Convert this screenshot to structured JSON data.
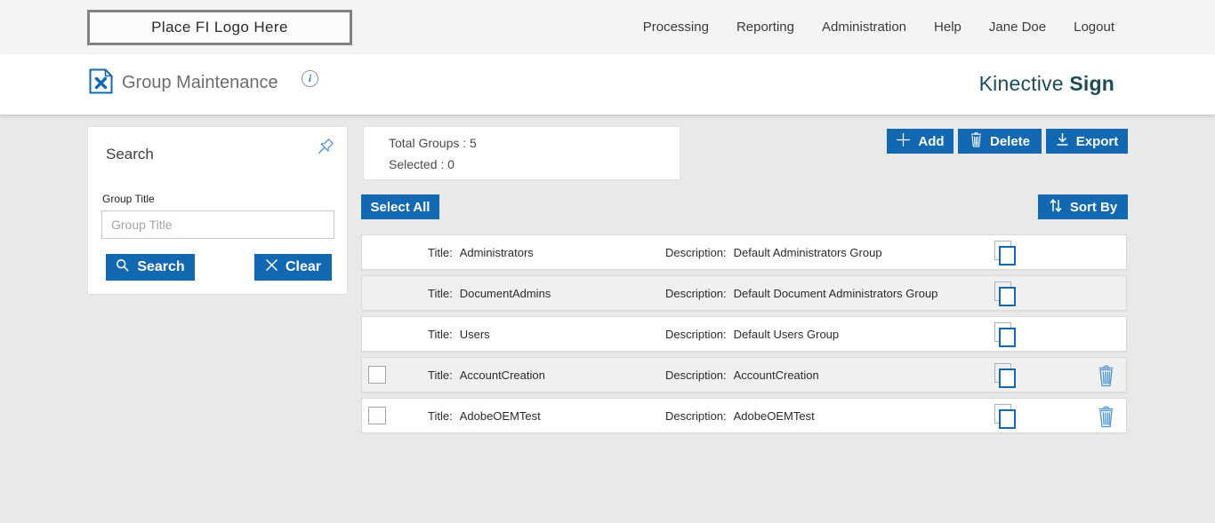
{
  "topbar": {
    "logo_text": "Place FI Logo Here",
    "nav": [
      "Processing",
      "Reporting",
      "Administration",
      "Help",
      "Jane Doe",
      "Logout"
    ]
  },
  "header": {
    "title": "Group Maintenance",
    "info_icon_glyph": "i",
    "brand_regular": "Kinective",
    "brand_bold": "Sign"
  },
  "search_panel": {
    "title": "Search",
    "field_label": "Group Title",
    "field_placeholder": "Group Title",
    "field_value": "",
    "search_button": "Search",
    "clear_button": "Clear"
  },
  "summary": {
    "total_label": "Total Groups :",
    "total_value": "5",
    "selected_label": "Selected :",
    "selected_value": "0"
  },
  "toolbar": {
    "add_label": "Add",
    "delete_label": "Delete",
    "export_label": "Export"
  },
  "list_controls": {
    "select_all_label": "Select All",
    "sort_by_label": "Sort By"
  },
  "groups": {
    "title_label": "Title:",
    "description_label": "Description:",
    "rows": [
      {
        "title": "Administrators",
        "description": "Default Administrators Group",
        "selectable": false,
        "deletable": false
      },
      {
        "title": "DocumentAdmins",
        "description": "Default Document Administrators Group",
        "selectable": false,
        "deletable": false
      },
      {
        "title": "Users",
        "description": "Default Users Group",
        "selectable": false,
        "deletable": false
      },
      {
        "title": "AccountCreation",
        "description": "AccountCreation",
        "selectable": true,
        "deletable": true
      },
      {
        "title": "AdobeOEMTest",
        "description": "AdobeOEMTest",
        "selectable": true,
        "deletable": true
      }
    ]
  },
  "colors": {
    "accent_blue": "#1268b1",
    "icon_blue": "#4e94cc",
    "brand_teal": "#1d4b57",
    "page_background": "#e9e9e9"
  }
}
